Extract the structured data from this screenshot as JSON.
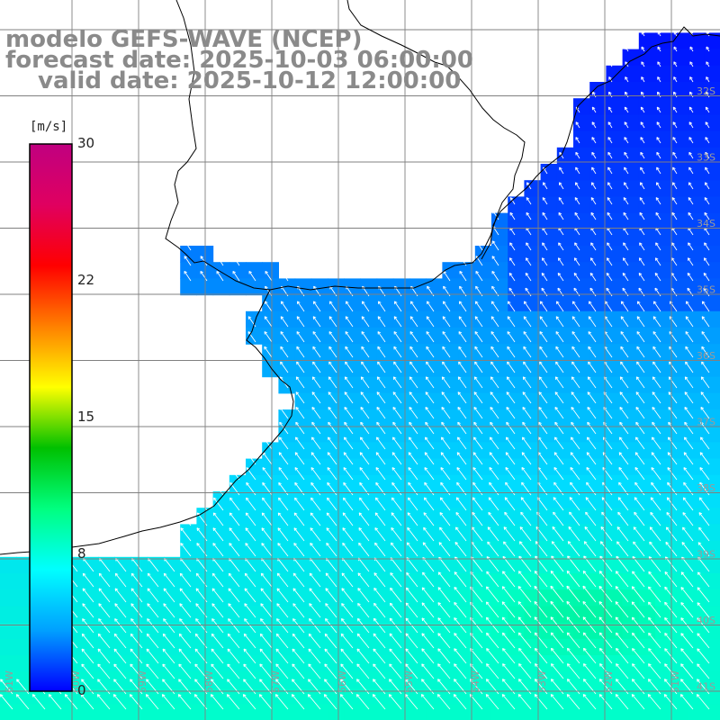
{
  "title": {
    "line1": "modelo GEFS-WAVE (NCEP)",
    "line2": "forecast date: 2025-10-03 06:00:00",
    "line3": "valid date: 2025-10-12 12:00:00"
  },
  "colorbar": {
    "unit": "[m/s]",
    "ticks": [
      "30",
      "22",
      "15",
      "8",
      "0"
    ],
    "min": 0,
    "max": 30,
    "colors": [
      "#0000ff",
      "#00a0ff",
      "#00ffff",
      "#00ff80",
      "#00c000",
      "#ffff00",
      "#ff8000",
      "#ff0000",
      "#e00060",
      "#c00080"
    ]
  },
  "map": {
    "latitude_labels": [
      "32S",
      "33S",
      "34S",
      "35S",
      "36S",
      "37S",
      "38S",
      "39S",
      "40S",
      "41S"
    ],
    "longitude_labels": [
      "61W",
      "60W",
      "59W",
      "58W",
      "57W",
      "56W",
      "55W",
      "54W",
      "53W",
      "52W",
      "51W"
    ],
    "colors": {
      "land": "#ffffff",
      "coast": "#000000",
      "grid": "#808080",
      "arrow": "#ffffff",
      "label": "#9a9a9a"
    }
  }
}
